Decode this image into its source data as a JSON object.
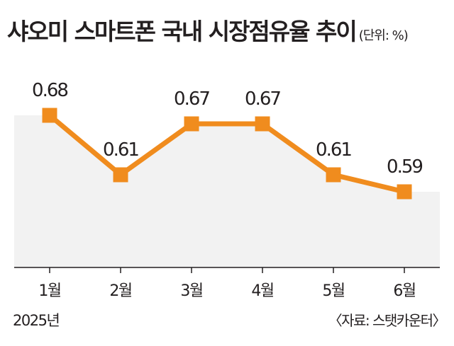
{
  "chart_title": "샤오미 스마트폰 국내 시장점유율 추이",
  "unit_note": "(단위: %)",
  "year_label": "2025년",
  "source": "〈자료: 스탯카운터〉",
  "colors": {
    "line": "#f08c1e",
    "area": "#f2f2f2",
    "axis": "#231f20"
  },
  "chart_data": {
    "type": "line",
    "title": "샤오미 스마트폰 국내 시장점유율 추이",
    "categories": [
      "1월",
      "2월",
      "3월",
      "4월",
      "5월",
      "6월"
    ],
    "values": [
      0.68,
      0.61,
      0.67,
      0.67,
      0.61,
      0.59
    ],
    "data_labels": [
      "0.68",
      "0.61",
      "0.67",
      "0.67",
      "0.61",
      "0.59"
    ],
    "ylim": [
      0.5,
      0.7
    ],
    "grid": false,
    "marker": "square"
  }
}
